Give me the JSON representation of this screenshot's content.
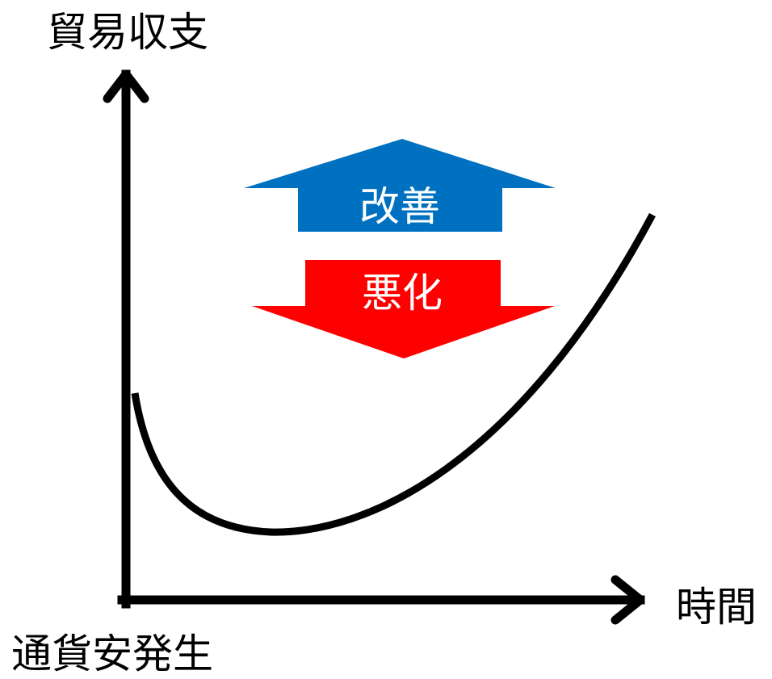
{
  "labels": {
    "y_axis": "貿易収支",
    "x_axis": "時間",
    "origin": "通貨安発生"
  },
  "arrows": {
    "up": {
      "text": "改善",
      "color": "#0070C0"
    },
    "down": {
      "text": "悪化",
      "color": "#FF0000"
    }
  },
  "colors": {
    "axis": "#000000",
    "curve": "#000000"
  }
}
